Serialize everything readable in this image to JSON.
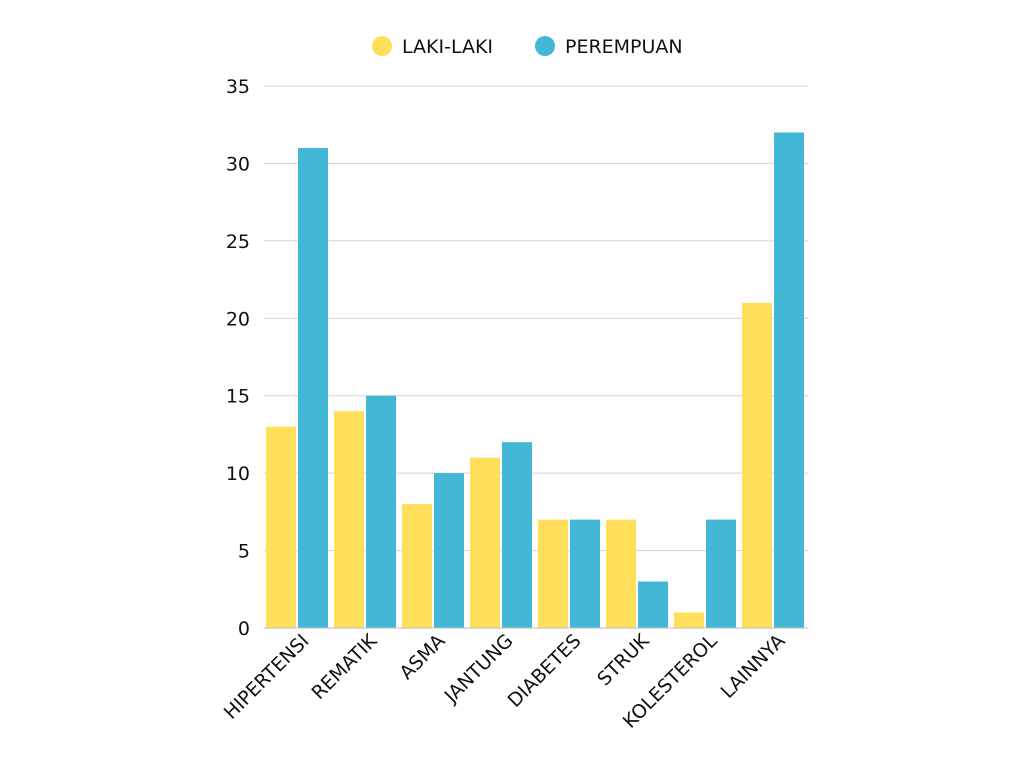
{
  "chart_data": {
    "type": "bar",
    "title": "",
    "xlabel": "",
    "ylabel": "",
    "categories": [
      "HIPERTENSI",
      "REMATIK",
      "ASMA",
      "JANTUNG",
      "DIABETES",
      "STRUK",
      "KOLESTEROL",
      "LAINNYA"
    ],
    "series": [
      {
        "name": "LAKI-LAKI",
        "color": "#FFDE59",
        "values": [
          13,
          14,
          8,
          11,
          7,
          7,
          1,
          21
        ]
      },
      {
        "name": "PEREMPUAN",
        "color": "#42B8D6",
        "values": [
          31,
          15,
          10,
          12,
          7,
          3,
          7,
          32
        ]
      }
    ],
    "ylim": [
      0,
      35
    ],
    "yticks": [
      0,
      5,
      10,
      15,
      20,
      25,
      30,
      35
    ],
    "grid": true,
    "legend": "top-center"
  }
}
